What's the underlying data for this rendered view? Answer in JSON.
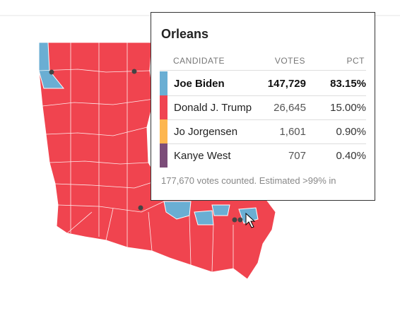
{
  "tooltip": {
    "title": "Orleans",
    "columns": [
      "CANDIDATE",
      "VOTES",
      "PCT"
    ],
    "rows": [
      {
        "candidate": "Joe Biden",
        "votes": "147,729",
        "pct": "83.15%",
        "color": "#6aaed3",
        "leader": true
      },
      {
        "candidate": "Donald J. Trump",
        "votes": "26,645",
        "pct": "15.00%",
        "color": "#f04451",
        "leader": false
      },
      {
        "candidate": "Jo Jorgensen",
        "votes": "1,601",
        "pct": "0.90%",
        "color": "#fdb64f",
        "leader": false
      },
      {
        "candidate": "Kanye West",
        "votes": "707",
        "pct": "0.40%",
        "color": "#7c4d79",
        "leader": false
      }
    ],
    "footer": "177,670 votes counted. Estimated >99% in"
  }
}
